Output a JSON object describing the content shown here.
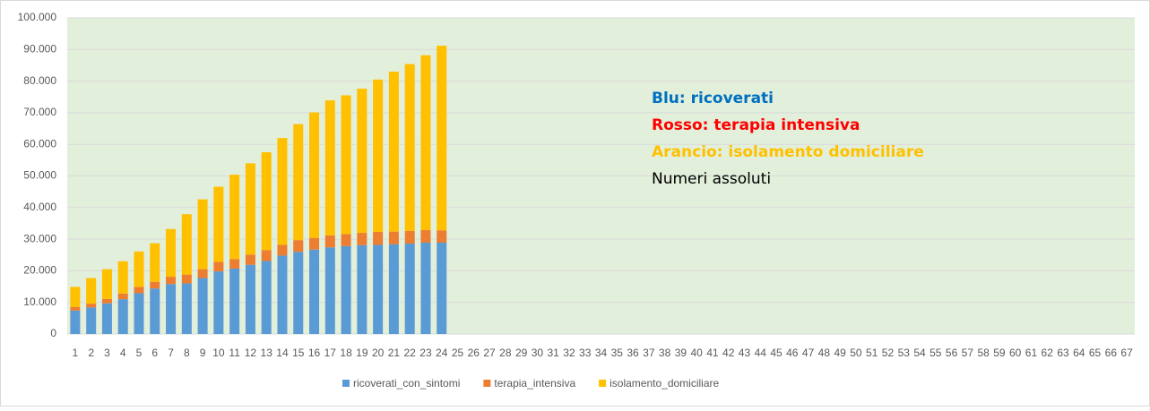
{
  "chart_data": {
    "type": "stacked_bar",
    "categories": [
      "1",
      "2",
      "3",
      "4",
      "5",
      "6",
      "7",
      "8",
      "9",
      "10",
      "11",
      "12",
      "13",
      "14",
      "15",
      "16",
      "17",
      "18",
      "19",
      "20",
      "21",
      "22",
      "23",
      "24",
      "25",
      "26",
      "27",
      "28",
      "29",
      "30",
      "31",
      "32",
      "33",
      "34",
      "35",
      "36",
      "37",
      "38",
      "39",
      "40",
      "41",
      "42",
      "43",
      "44",
      "45",
      "46",
      "47",
      "48",
      "49",
      "50",
      "51",
      "52",
      "53",
      "54",
      "55",
      "56",
      "57",
      "58",
      "59",
      "60",
      "61",
      "62",
      "63",
      "64",
      "65",
      "66",
      "67"
    ],
    "series": [
      {
        "name": "ricoverati_con_sintomi",
        "color": "#5b9bd5",
        "values": [
          7400,
          8400,
          9700,
          11000,
          12900,
          14400,
          15800,
          16000,
          17700,
          19800,
          20700,
          21900,
          23100,
          24800,
          26000,
          26700,
          27400,
          27800,
          28100,
          28200,
          28400,
          28600,
          28900,
          28900,
          null,
          null,
          null,
          null,
          null,
          null,
          null,
          null,
          null,
          null,
          null,
          null,
          null,
          null,
          null,
          null,
          null,
          null,
          null,
          null,
          null,
          null,
          null,
          null,
          null,
          null,
          null,
          null,
          null,
          null,
          null,
          null,
          null,
          null,
          null,
          null,
          null,
          null,
          null,
          null,
          null,
          null,
          null
        ]
      },
      {
        "name": "terapia_intensiva",
        "color": "#ed7d31",
        "values": [
          1100,
          1200,
          1400,
          1800,
          2000,
          2100,
          2300,
          2800,
          2800,
          3000,
          3000,
          3200,
          3400,
          3400,
          3700,
          3700,
          3800,
          3800,
          3900,
          4100,
          4000,
          4000,
          4000,
          3900,
          null,
          null,
          null,
          null,
          null,
          null,
          null,
          null,
          null,
          null,
          null,
          null,
          null,
          null,
          null,
          null,
          null,
          null,
          null,
          null,
          null,
          null,
          null,
          null,
          null,
          null,
          null,
          null,
          null,
          null,
          null,
          null,
          null,
          null,
          null,
          null,
          null,
          null,
          null,
          null,
          null,
          null,
          null
        ]
      },
      {
        "name": "isolamento_domiciliare",
        "color": "#ffc000",
        "values": [
          6400,
          8100,
          9400,
          10200,
          11200,
          12200,
          15100,
          19100,
          22100,
          23800,
          26700,
          28900,
          31000,
          33800,
          36700,
          39700,
          42700,
          43900,
          45600,
          48200,
          50600,
          52800,
          55300,
          58400,
          null,
          null,
          null,
          null,
          null,
          null,
          null,
          null,
          null,
          null,
          null,
          null,
          null,
          null,
          null,
          null,
          null,
          null,
          null,
          null,
          null,
          null,
          null,
          null,
          null,
          null,
          null,
          null,
          null,
          null,
          null,
          null,
          null,
          null,
          null,
          null,
          null,
          null,
          null,
          null,
          null,
          null,
          null
        ]
      }
    ],
    "ylim": [
      0,
      100000
    ],
    "yticks": [
      0,
      {
        "value": 10000,
        "label": "10.000"
      },
      {
        "value": 20000,
        "label": "20.000"
      },
      {
        "value": 30000,
        "label": "30.000"
      },
      {
        "value": 40000,
        "label": "40.000"
      },
      {
        "value": 50000,
        "label": "50.000"
      },
      {
        "value": 60000,
        "label": "60.000"
      },
      {
        "value": 70000,
        "label": "70.000"
      },
      {
        "value": 80000,
        "label": "80.000"
      },
      {
        "value": 90000,
        "label": "90.000"
      },
      {
        "value": 100000,
        "label": "100.000"
      }
    ],
    "grid": true,
    "plot_background": "#e2efda",
    "legend": "bottom",
    "annotations": [
      {
        "text": "Blu: ricoverati",
        "color": "#0070c0",
        "bold": true
      },
      {
        "text": "Rosso: terapia intensiva",
        "color": "#ff0000",
        "bold": true
      },
      {
        "text": "Arancio: isolamento domiciliare",
        "color": "#ffc000",
        "bold": true
      },
      {
        "text": "Numeri assoluti",
        "color": "#000000",
        "bold": false
      }
    ]
  }
}
